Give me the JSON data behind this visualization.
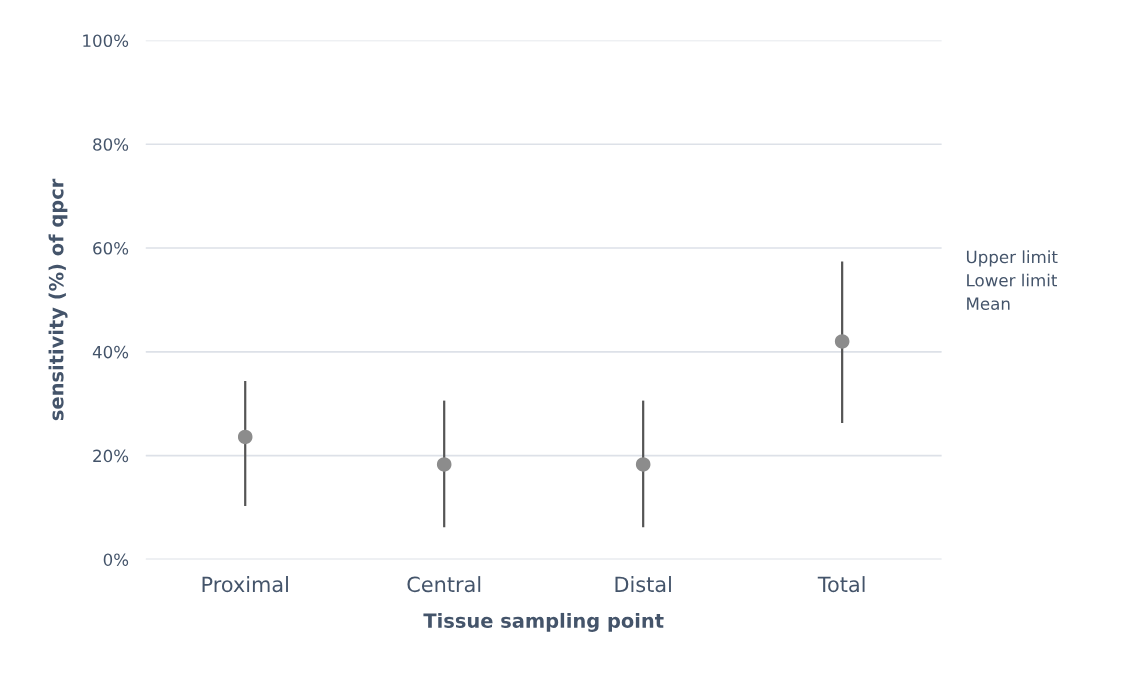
{
  "chart_data": {
    "type": "scatter",
    "xlabel": "Tissue sampling point",
    "ylabel": "sensitivity (%) of qpcr",
    "categories": [
      "Proximal",
      "Central",
      "Distal",
      "Total"
    ],
    "series": [
      {
        "color": "#8c8c8c",
        "values": [
          23.6,
          18.3,
          18.3,
          42.0
        ],
        "errors": [
          [
            10.3,
            34.4
          ],
          [
            6.2,
            30.6
          ],
          [
            6.2,
            30.6
          ],
          [
            26.3,
            57.4
          ]
        ]
      }
    ],
    "ylim": [
      0,
      100
    ],
    "yticks": [
      {
        "value": 0,
        "label": "0%"
      },
      {
        "value": 20,
        "label": "20%"
      },
      {
        "value": 40,
        "label": "40%"
      },
      {
        "value": 60,
        "label": "60%"
      },
      {
        "value": 80,
        "label": "80%"
      },
      {
        "value": 100,
        "label": "100%"
      }
    ],
    "grid": "y",
    "marker": "circle",
    "annotations": [
      "Upper limit",
      "Lower limit",
      "Mean"
    ]
  }
}
